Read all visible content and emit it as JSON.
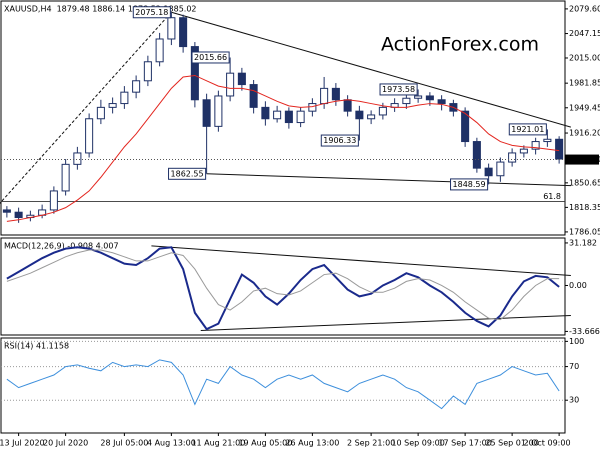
{
  "chart_data": [
    {
      "type": "candlestick",
      "title": "XAUUSD,H4",
      "header_values": "1879.48 1886.14 1878.52 1885.02",
      "watermark": "ActionForex.com",
      "color": "#1f3166",
      "open": [
        1815,
        1812,
        1805,
        1808,
        1815,
        1840,
        1875,
        1890,
        1935,
        1950,
        1955,
        1970,
        1985,
        2010,
        2040,
        2068,
        2030,
        1960,
        1925,
        1965,
        1995,
        1980,
        1950,
        1935,
        1945,
        1930,
        1945,
        1955,
        1975,
        1960,
        1945,
        1935,
        1940,
        1950,
        1955,
        1962,
        1965,
        1960,
        1955,
        1945,
        1905,
        1870,
        1860,
        1878,
        1890,
        1895,
        1905,
        1908
      ],
      "high": [
        1820,
        1818,
        1814,
        1822,
        1846,
        1882,
        1898,
        1942,
        1960,
        1963,
        1978,
        1992,
        2018,
        2048,
        2075.18,
        2072,
        2036,
        1968,
        1972,
        2015.66,
        2002,
        1986,
        1958,
        1952,
        1950,
        1950,
        1962,
        1990,
        1982,
        1966,
        1952,
        1946,
        1956,
        1962,
        1968,
        1973.58,
        1970,
        1966,
        1960,
        1950,
        1910,
        1876,
        1884,
        1896,
        1900,
        1910,
        1921.01,
        1912
      ],
      "low": [
        1805,
        1798,
        1800,
        1804,
        1810,
        1834,
        1868,
        1884,
        1928,
        1942,
        1948,
        1962,
        1978,
        2004,
        2032,
        2022,
        1950,
        1862.55,
        1918,
        1958,
        1972,
        1942,
        1926,
        1930,
        1922,
        1924,
        1938,
        1948,
        1952,
        1938,
        1906.33,
        1928,
        1934,
        1944,
        1948,
        1956,
        1952,
        1946,
        1938,
        1898,
        1864,
        1848.59,
        1852,
        1872,
        1884,
        1888,
        1898,
        1876
      ],
      "close": [
        1812,
        1805,
        1808,
        1815,
        1840,
        1875,
        1890,
        1935,
        1950,
        1955,
        1970,
        1985,
        2010,
        2040,
        2068,
        2030,
        1960,
        1925,
        1965,
        1995,
        1980,
        1950,
        1935,
        1945,
        1930,
        1945,
        1955,
        1975,
        1960,
        1945,
        1935,
        1940,
        1950,
        1955,
        1962,
        1965,
        1960,
        1955,
        1945,
        1905,
        1870,
        1860,
        1878,
        1890,
        1895,
        1905,
        1908,
        1882
      ],
      "ma": {
        "color": "#e3261f",
        "values": [
          1800,
          1802,
          1805,
          1808,
          1812,
          1818,
          1828,
          1840,
          1858,
          1878,
          1898,
          1915,
          1935,
          1955,
          1975,
          1990,
          1992,
          1985,
          1978,
          1975,
          1975,
          1972,
          1965,
          1958,
          1952,
          1950,
          1951,
          1955,
          1958,
          1960,
          1958,
          1955,
          1952,
          1950,
          1950,
          1953,
          1955,
          1954,
          1950,
          1942,
          1930,
          1915,
          1905,
          1900,
          1898,
          1897,
          1895,
          1893
        ]
      },
      "ylim": [
        1782,
        2090
      ],
      "yticks": [
        {
          "value": 2079.6,
          "label": "2079.60"
        },
        2047.15,
        {
          "value": 2015,
          "label": "2015.00"
        },
        1981.85,
        1949.45,
        {
          "value": 1916.2,
          "label": "1916.20"
        },
        1850.65,
        1818.35,
        1786.05
      ],
      "last": {
        "value": 1881.3,
        "label": "1881.30"
      },
      "fib": {
        "value": 1826,
        "label": "61.8"
      },
      "trendlines": [
        {
          "x": [
            -0.7,
            14
          ],
          "y": [
            1822,
            2075.18
          ],
          "dashed": true
        },
        {
          "x": [
            14,
            48
          ],
          "y": [
            2075.18,
            1924
          ],
          "dashed": false
        },
        {
          "x": [
            17,
            48
          ],
          "y": [
            1862.55,
            1847
          ],
          "dashed": false
        }
      ]
    },
    {
      "type": "line",
      "title": "MACD(12,26,9) -0.908 4.007",
      "series": [
        {
          "color": "#1a2a8c",
          "width": 2,
          "values": [
            5,
            10,
            15,
            20,
            24,
            27,
            28,
            27,
            24,
            20,
            16,
            15,
            20,
            27,
            28,
            12,
            -20,
            -32,
            -28,
            -10,
            8,
            2,
            -8,
            -14,
            -6,
            4,
            12,
            15,
            6,
            -3,
            -8,
            -6,
            0,
            4,
            9,
            6,
            0,
            -5,
            -12,
            -20,
            -26,
            -30,
            -22,
            -8,
            3,
            7,
            6,
            -1
          ]
        },
        {
          "color": "#9a9a9a",
          "width": 1,
          "values": [
            3,
            6,
            9,
            13,
            17,
            21,
            24,
            26,
            26,
            24,
            21,
            18,
            18,
            21,
            24,
            22,
            12,
            -2,
            -14,
            -18,
            -12,
            -4,
            -2,
            -6,
            -7,
            -4,
            2,
            8,
            9,
            5,
            -1,
            -5,
            -5,
            -2,
            3,
            5,
            4,
            0,
            -5,
            -12,
            -18,
            -24,
            -25,
            -18,
            -8,
            0,
            5,
            5
          ]
        }
      ],
      "ylim": [
        -36.3,
        34.8
      ],
      "yticks": [
        31.182,
        {
          "value": 0,
          "label": "0.00"
        },
        -33.666
      ],
      "trendlines": [
        {
          "x": [
            12.3,
            48
          ],
          "y": [
            29,
            7.3
          ],
          "dashed": false
        },
        {
          "x": [
            16.5,
            48
          ],
          "y": [
            -33,
            -22
          ],
          "dashed": false
        }
      ]
    },
    {
      "type": "line",
      "title": "RSI(14) 41.1158",
      "series": [
        {
          "color": "#3d8fdc",
          "width": 1,
          "values": [
            55,
            45,
            50,
            55,
            60,
            70,
            72,
            68,
            65,
            75,
            70,
            72,
            70,
            78,
            75,
            60,
            25,
            55,
            50,
            70,
            60,
            55,
            45,
            55,
            60,
            55,
            60,
            50,
            45,
            40,
            50,
            55,
            60,
            55,
            45,
            40,
            30,
            20,
            35,
            25,
            50,
            55,
            60,
            70,
            65,
            60,
            62,
            41
          ]
        }
      ],
      "ylim": [
        -9,
        104
      ],
      "yticks": [
        100,
        70,
        30
      ],
      "grid": true,
      "categories": [
        null,
        "13 Jul 2020",
        null,
        null,
        null,
        "20 Jul 2020",
        null,
        null,
        null,
        null,
        "28 Jul 05:00",
        null,
        null,
        null,
        "4 Aug 13:00",
        null,
        null,
        null,
        "11 Aug 21:00",
        null,
        null,
        null,
        "19 Aug 05:00",
        null,
        null,
        null,
        "26 Aug 13:00",
        null,
        null,
        null,
        null,
        "2 Sep 21:00",
        null,
        null,
        null,
        "10 Sep 09:00",
        null,
        null,
        null,
        "17 Sep 17:00",
        null,
        null,
        null,
        "25 Sep 01:00",
        null,
        null,
        null,
        "2 Oct 09:00"
      ]
    }
  ]
}
